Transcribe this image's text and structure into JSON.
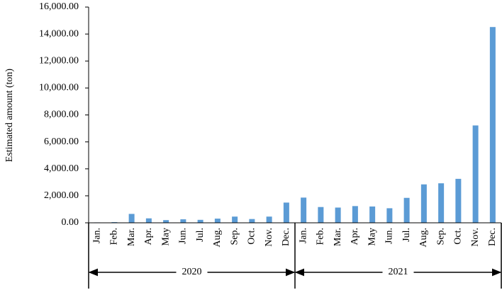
{
  "chart_data": {
    "type": "bar",
    "y_label": "Estimated amount (ton)",
    "categories": [
      "Jan.",
      "Feb.",
      "Mar.",
      "Apr.",
      "May",
      "Jun.",
      "Jul.",
      "Aug.",
      "Sep.",
      "Oct.",
      "Nov.",
      "Dec.",
      "Jan.",
      "Feb.",
      "Mar.",
      "Apr.",
      "May",
      "Jun.",
      "Jul.",
      "Aug.",
      "Sep.",
      "Oct.",
      "Nov.",
      "Dec."
    ],
    "groups": [
      "2020",
      "2021"
    ],
    "values": [
      30,
      50,
      660,
      330,
      200,
      260,
      220,
      310,
      460,
      280,
      460,
      1500,
      1870,
      1170,
      1130,
      1240,
      1210,
      1080,
      1850,
      2850,
      2930,
      3260,
      7220,
      14520
    ],
    "color": "#5b9bd5",
    "ylim": [
      0,
      16000
    ],
    "yticks": [
      {
        "value": 0,
        "label": "0.00"
      },
      {
        "value": 2000,
        "label": "2,000.00"
      },
      {
        "value": 4000,
        "label": "4,000.00"
      },
      {
        "value": 6000,
        "label": "6,000.00"
      },
      {
        "value": 8000,
        "label": "8,000.00"
      },
      {
        "value": 10000,
        "label": "10,000.00"
      },
      {
        "value": 12000,
        "label": "12,000.00"
      },
      {
        "value": 14000,
        "label": "14,000.00"
      },
      {
        "value": 16000,
        "label": "16,000.00"
      }
    ],
    "grid": false
  }
}
